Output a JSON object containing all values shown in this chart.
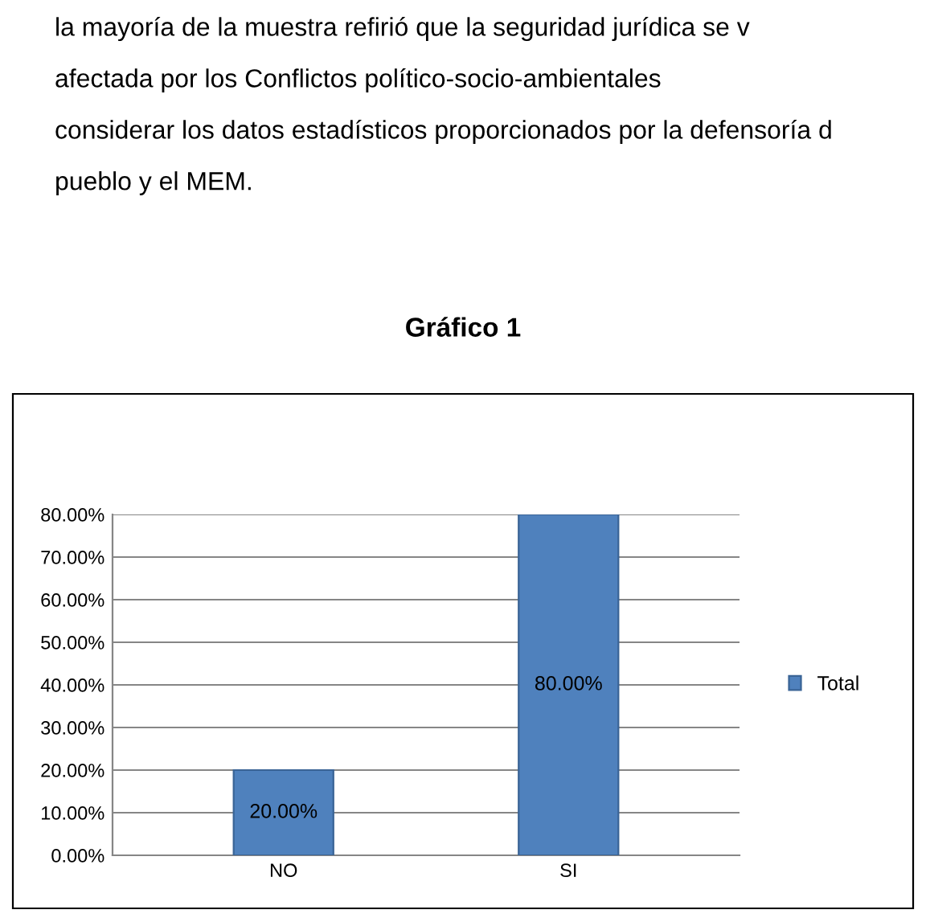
{
  "chart_data": {
    "type": "bar",
    "title": "Gráfico 1",
    "annotations": [
      "la mayoría de la muestra refirió que la seguridad jurídica se v",
      "afectada por los Conflictos político-socio-ambientales",
      "considerar los datos estadísticos proporcionados por la defensoría d",
      "pueblo y el MEM."
    ],
    "categories": [
      "NO",
      "SI"
    ],
    "series": [
      {
        "name": "Total",
        "color": "#4f81bd",
        "values": [
          20,
          80
        ],
        "value_labels": [
          "20.00%",
          "80.00%"
        ]
      }
    ],
    "ylim": [
      0,
      80
    ],
    "yticks": [
      {
        "value": 0,
        "label": "0.00%"
      },
      {
        "value": 10,
        "label": "10.00%"
      },
      {
        "value": 20,
        "label": "20.00%"
      },
      {
        "value": 30,
        "label": "30.00%"
      },
      {
        "value": 40,
        "label": "40.00%"
      },
      {
        "value": 50,
        "label": "50.00%"
      },
      {
        "value": 60,
        "label": "60.00%"
      },
      {
        "value": 70,
        "label": "70.00%"
      },
      {
        "value": 80,
        "label": "80.00%"
      }
    ],
    "grid": "y",
    "legend": "right"
  }
}
